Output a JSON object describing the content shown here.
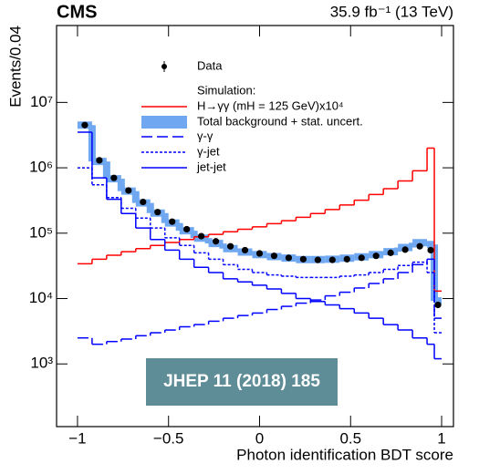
{
  "chart_data": {
    "type": "histogram",
    "title": "CMS",
    "subtitle": "35.9 fb⁻¹ (13 TeV)",
    "x_label": "Photon identification BDT score",
    "y_label": "Events/0.04",
    "legend_header": "Simulation:",
    "badge": "JHEP 11 (2018) 185",
    "log_y": true,
    "bins": [
      -1,
      -0.92,
      -0.84,
      -0.76,
      -0.68,
      -0.6,
      -0.52,
      -0.44,
      -0.36,
      -0.28,
      -0.2,
      -0.12,
      -0.04,
      0.04,
      0.12,
      0.2,
      0.28,
      0.36,
      0.44,
      0.52,
      0.6,
      0.68,
      0.76,
      0.84,
      0.92,
      0.96,
      1.0
    ],
    "series": [
      {
        "name": "Data",
        "style": "points",
        "color": "#000000",
        "values": [
          4500000,
          1300000,
          700000,
          450000,
          300000,
          210000,
          150000,
          115000,
          90000,
          75000,
          63000,
          55000,
          49000,
          45000,
          42000,
          40000,
          39000,
          39000,
          40000,
          42000,
          45000,
          50000,
          56000,
          63000,
          55000,
          8000
        ]
      },
      {
        "name": "H→γγ (mH = 125 GeV)x10⁴",
        "style": "solid",
        "color": "#ff0000",
        "values": [
          34000,
          40000,
          46000,
          52000,
          58000,
          65000,
          72000,
          80000,
          88000,
          96000,
          105000,
          115000,
          125000,
          140000,
          155000,
          175000,
          200000,
          230000,
          270000,
          320000,
          390000,
          480000,
          630000,
          900000,
          2000000,
          13000
        ]
      },
      {
        "name": "Total background + stat. uncert.",
        "style": "band",
        "color": "#6fa8f0",
        "values": [
          4500000,
          1250000,
          680000,
          440000,
          290000,
          203000,
          143000,
          109000,
          84000,
          69500,
          58000,
          51500,
          47000,
          43800,
          41600,
          39500,
          39500,
          40000,
          41500,
          43500,
          47000,
          52000,
          60300,
          71500,
          67000,
          9200
        ]
      },
      {
        "name": "γ-γ",
        "style": "dashed",
        "color": "#0000ff",
        "values": [
          2500,
          2000,
          2200,
          2400,
          2700,
          3000,
          3300,
          3700,
          4000,
          4500,
          5000,
          5500,
          6000,
          6800,
          7600,
          8500,
          9500,
          11000,
          12500,
          14500,
          17000,
          20000,
          25000,
          33000,
          40000,
          5000
        ]
      },
      {
        "name": "γ-jet",
        "style": "dotted",
        "color": "#0000ff",
        "values": [
          1000000,
          550000,
          350000,
          240000,
          170000,
          120000,
          85000,
          65000,
          50000,
          40000,
          33000,
          28000,
          25000,
          23000,
          22000,
          21000,
          21000,
          21000,
          22000,
          23000,
          25000,
          28000,
          32000,
          36000,
          25000,
          3000
        ]
      },
      {
        "name": "jet-jet",
        "style": "solid",
        "color": "#0000ff",
        "values": [
          3500000,
          700000,
          330000,
          200000,
          120000,
          80000,
          55000,
          40000,
          30000,
          25000,
          20000,
          18000,
          16000,
          14000,
          12000,
          10000,
          9000,
          8000,
          7000,
          6000,
          5000,
          4000,
          3300,
          2500,
          2000,
          1200
        ]
      }
    ],
    "xlim": [
      -1.115,
      1.065
    ],
    "ylim": [
      110,
      150000000
    ],
    "xticks": [
      {
        "value": -1,
        "label": "−1"
      },
      {
        "value": -0.5,
        "label": "−0.5"
      },
      0,
      0.5,
      1
    ],
    "yticks": [
      {
        "value": 1000,
        "label": "10³"
      },
      {
        "value": 10000,
        "label": "10⁴"
      },
      {
        "value": 100000,
        "label": "10⁵"
      },
      {
        "value": 1000000,
        "label": "10⁶"
      },
      {
        "value": 10000000,
        "label": "10⁷"
      }
    ]
  }
}
